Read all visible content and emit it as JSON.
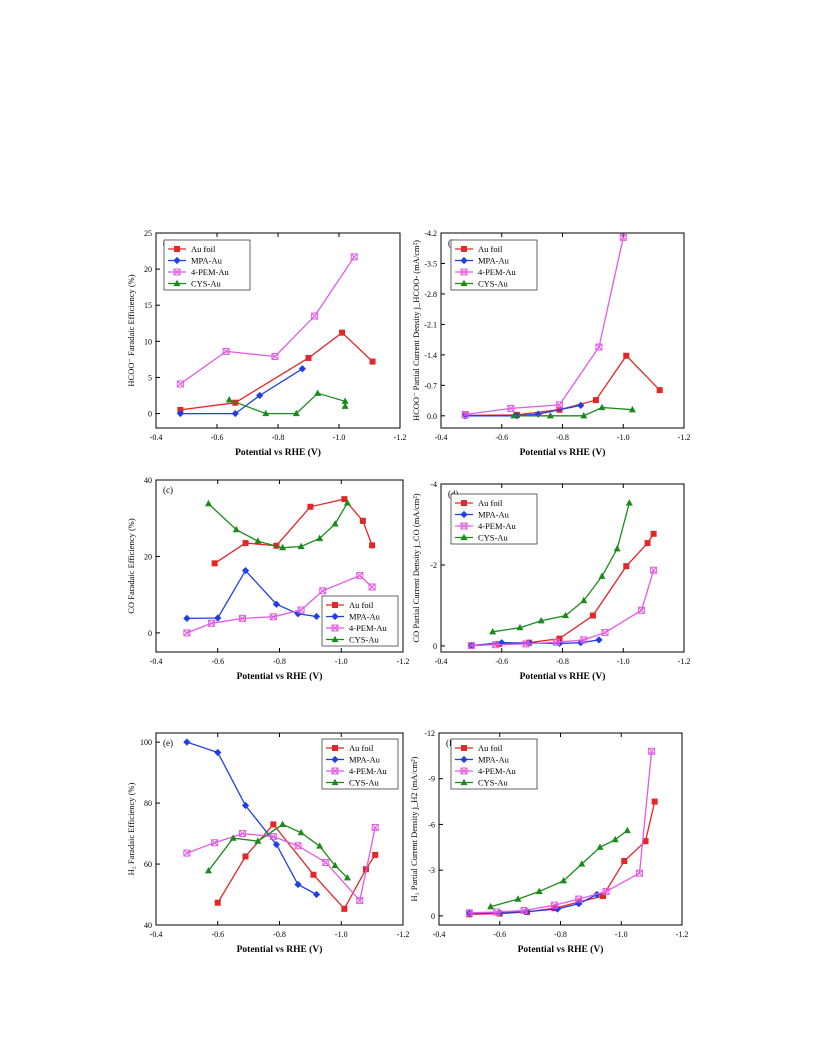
{
  "colors": {
    "Au foil": "#e32626",
    "MPA-Au": "#1f3ee8",
    "4-PEM-Au": "#e35ae3",
    "CYS-Au": "#1a8a1a"
  },
  "chart_data": [
    {
      "type": "line",
      "panel_label": "(a)",
      "xlabel": "Potential vs RHE (V)",
      "ylabel": "HCOO⁻ Faradaic Efficiency (%)",
      "xlim": [
        -0.4,
        -1.2
      ],
      "ylim": [
        -2,
        25
      ],
      "xticks": [
        -0.4,
        -0.6,
        -0.8,
        -1.0,
        -1.2
      ],
      "xtick_labels": [
        "-0.4",
        "-0.6",
        "-0.8",
        "-1.0",
        "-1.2"
      ],
      "yticks": [
        0,
        5,
        10,
        15,
        20,
        25
      ],
      "ytick_labels": [
        "0",
        "5",
        "10",
        "15",
        "20",
        "25"
      ],
      "legend": "top-left",
      "series": [
        {
          "name": "Au foil",
          "marker": "square",
          "points": [
            [
              -0.48,
              0.5
            ],
            [
              -0.66,
              1.5
            ],
            [
              -0.9,
              7.7
            ],
            [
              -1.01,
              11.2
            ],
            [
              -1.11,
              7.2
            ]
          ]
        },
        {
          "name": "MPA-Au",
          "marker": "diamond",
          "points": [
            [
              -0.48,
              0.0
            ],
            [
              -0.66,
              0.0
            ],
            [
              -0.74,
              2.5
            ],
            [
              -0.88,
              6.2
            ]
          ]
        },
        {
          "name": "4-PEM-Au",
          "marker": "xsquare",
          "points": [
            [
              -0.48,
              4.1
            ],
            [
              -0.63,
              8.6
            ],
            [
              -0.79,
              7.9
            ],
            [
              -0.92,
              13.5
            ],
            [
              -1.05,
              21.7
            ]
          ]
        },
        {
          "name": "CYS-Au",
          "marker": "triangle",
          "points": [
            [
              -0.64,
              1.9
            ],
            [
              -0.76,
              0.0
            ],
            [
              -0.86,
              0.0
            ],
            [
              -0.93,
              2.8
            ],
            [
              -1.02,
              1.7
            ],
            [
              -1.02,
              1.0
            ]
          ]
        }
      ]
    },
    {
      "type": "line",
      "panel_label": "(b)",
      "xlabel": "Potential vs RHE (V)",
      "ylabel": "HCOO⁻ Partial Current Density j_HCOO- (mA/cm²)",
      "xlim": [
        -0.4,
        -1.2
      ],
      "ylim": [
        0.28,
        -4.2
      ],
      "xticks": [
        -0.4,
        -0.6,
        -0.8,
        -1.0,
        -1.2
      ],
      "xtick_labels": [
        "-0.4",
        "-0.6",
        "-0.8",
        "-1.0",
        "-1.2"
      ],
      "yticks": [
        0.0,
        -0.7,
        -1.4,
        -2.1,
        -2.8,
        -3.5,
        -4.2
      ],
      "ytick_labels": [
        "0.0",
        "-0.7",
        "-1.4",
        "-2.1",
        "-2.8",
        "-3.5",
        "-4.2"
      ],
      "legend": "top-left",
      "series": [
        {
          "name": "Au foil",
          "marker": "square",
          "points": [
            [
              -0.48,
              -0.01
            ],
            [
              -0.65,
              -0.02
            ],
            [
              -0.79,
              -0.14
            ],
            [
              -0.91,
              -0.36
            ],
            [
              -1.01,
              -1.38
            ],
            [
              -1.12,
              -0.59
            ]
          ]
        },
        {
          "name": "MPA-Au",
          "marker": "diamond",
          "points": [
            [
              -0.48,
              0.0
            ],
            [
              -0.65,
              0.0
            ],
            [
              -0.72,
              -0.04
            ],
            [
              -0.86,
              -0.24
            ]
          ]
        },
        {
          "name": "4-PEM-Au",
          "marker": "xsquare",
          "points": [
            [
              -0.48,
              -0.03
            ],
            [
              -0.63,
              -0.17
            ],
            [
              -0.79,
              -0.25
            ],
            [
              -0.92,
              -1.58
            ],
            [
              -1.0,
              -4.1
            ]
          ]
        },
        {
          "name": "CYS-Au",
          "marker": "triangle",
          "points": [
            [
              -0.64,
              0.0
            ],
            [
              -0.76,
              0.0
            ],
            [
              -0.87,
              0.0
            ],
            [
              -0.93,
              -0.19
            ],
            [
              -1.03,
              -0.14
            ]
          ]
        }
      ]
    },
    {
      "type": "line",
      "panel_label": "(c)",
      "xlabel": "Potential vs RHE (V)",
      "ylabel": "CO Faradaic Efficiency (%)",
      "xlim": [
        -0.4,
        -1.2
      ],
      "ylim": [
        -5,
        40
      ],
      "xticks": [
        -0.4,
        -0.6,
        -0.8,
        -1.0,
        -1.2
      ],
      "xtick_labels": [
        "-0.4",
        "-0.6",
        "-0.8",
        "-1.0",
        "-1.2"
      ],
      "yticks": [
        0,
        20,
        40
      ],
      "ytick_labels": [
        "0",
        "20",
        "40"
      ],
      "legend": "bottom-right",
      "series": [
        {
          "name": "Au foil",
          "marker": "square",
          "points": [
            [
              -0.59,
              18.2
            ],
            [
              -0.69,
              23.5
            ],
            [
              -0.79,
              22.8
            ],
            [
              -0.9,
              33.0
            ],
            [
              -1.01,
              35.0
            ],
            [
              -1.07,
              29.3
            ],
            [
              -1.1,
              22.9
            ]
          ]
        },
        {
          "name": "MPA-Au",
          "marker": "diamond",
          "points": [
            [
              -0.5,
              3.8
            ],
            [
              -0.6,
              3.9
            ],
            [
              -0.69,
              16.3
            ],
            [
              -0.79,
              7.5
            ],
            [
              -0.86,
              5.0
            ],
            [
              -0.92,
              4.3
            ]
          ]
        },
        {
          "name": "4-PEM-Au",
          "marker": "xsquare",
          "points": [
            [
              -0.5,
              0.0
            ],
            [
              -0.58,
              2.5
            ],
            [
              -0.68,
              3.8
            ],
            [
              -0.78,
              4.2
            ],
            [
              -0.87,
              6.0
            ],
            [
              -0.94,
              11.0
            ],
            [
              -1.06,
              15.0
            ],
            [
              -1.1,
              12.0
            ]
          ]
        },
        {
          "name": "CYS-Au",
          "marker": "triangle",
          "points": [
            [
              -0.57,
              33.8
            ],
            [
              -0.66,
              27.0
            ],
            [
              -0.73,
              24.0
            ],
            [
              -0.81,
              22.3
            ],
            [
              -0.87,
              22.6
            ],
            [
              -0.93,
              24.7
            ],
            [
              -0.98,
              28.5
            ],
            [
              -1.02,
              34.0
            ]
          ]
        }
      ]
    },
    {
      "type": "line",
      "panel_label": "(d)",
      "xlabel": "Potential vs RHE (V)",
      "ylabel": "CO Partial Current Density j_CO (mA/cm²)",
      "xlim": [
        -0.4,
        -1.2
      ],
      "ylim": [
        0.15,
        -4
      ],
      "xticks": [
        -0.4,
        -0.6,
        -0.8,
        -1.0,
        -1.2
      ],
      "xtick_labels": [
        "-0.4",
        "-0.6",
        "-0.8",
        "-1.0",
        "-1.2"
      ],
      "yticks": [
        0,
        -2,
        -4
      ],
      "ytick_labels": [
        "0",
        "-2",
        "-4"
      ],
      "legend": "top-left",
      "series": [
        {
          "name": "Au foil",
          "marker": "square",
          "points": [
            [
              -0.5,
              0.0
            ],
            [
              -0.59,
              -0.05
            ],
            [
              -0.69,
              -0.08
            ],
            [
              -0.79,
              -0.18
            ],
            [
              -0.9,
              -0.75
            ],
            [
              -1.01,
              -1.97
            ],
            [
              -1.08,
              -2.54
            ],
            [
              -1.1,
              -2.77
            ]
          ]
        },
        {
          "name": "MPA-Au",
          "marker": "diamond",
          "points": [
            [
              -0.5,
              -0.01
            ],
            [
              -0.6,
              -0.08
            ],
            [
              -0.69,
              -0.07
            ],
            [
              -0.79,
              -0.06
            ],
            [
              -0.86,
              -0.08
            ],
            [
              -0.92,
              -0.15
            ]
          ]
        },
        {
          "name": "4-PEM-Au",
          "marker": "xsquare",
          "points": [
            [
              -0.5,
              -0.01
            ],
            [
              -0.58,
              -0.03
            ],
            [
              -0.68,
              -0.05
            ],
            [
              -0.78,
              -0.09
            ],
            [
              -0.87,
              -0.15
            ],
            [
              -0.94,
              -0.33
            ],
            [
              -1.06,
              -0.88
            ],
            [
              -1.1,
              -1.87
            ]
          ]
        },
        {
          "name": "CYS-Au",
          "marker": "triangle",
          "points": [
            [
              -0.57,
              -0.35
            ],
            [
              -0.66,
              -0.45
            ],
            [
              -0.73,
              -0.62
            ],
            [
              -0.81,
              -0.75
            ],
            [
              -0.87,
              -1.12
            ],
            [
              -0.93,
              -1.72
            ],
            [
              -0.98,
              -2.4
            ],
            [
              -1.02,
              -3.53
            ]
          ]
        }
      ]
    },
    {
      "type": "line",
      "panel_label": "(e)",
      "xlabel": "Potential vs RHE (V)",
      "ylabel": "H₂ Faradaic Efficiency (%)",
      "xlim": [
        -0.4,
        -1.2
      ],
      "ylim": [
        40,
        103
      ],
      "xticks": [
        -0.4,
        -0.6,
        -0.8,
        -1.0,
        -1.2
      ],
      "xtick_labels": [
        "-0.4",
        "-0.6",
        "-0.8",
        "-1.0",
        "-1.2"
      ],
      "yticks": [
        40,
        60,
        80,
        100
      ],
      "ytick_labels": [
        "40",
        "60",
        "80",
        "100"
      ],
      "legend": "top-right",
      "series": [
        {
          "name": "Au foil",
          "marker": "square",
          "points": [
            [
              -0.6,
              47.3
            ],
            [
              -0.69,
              62.5
            ],
            [
              -0.78,
              73.0
            ],
            [
              -0.91,
              56.5
            ],
            [
              -1.01,
              45.3
            ],
            [
              -1.08,
              58.3
            ],
            [
              -1.11,
              63.0
            ]
          ]
        },
        {
          "name": "MPA-Au",
          "marker": "diamond",
          "points": [
            [
              -0.5,
              100.0
            ],
            [
              -0.6,
              96.6
            ],
            [
              -0.69,
              79.2
            ],
            [
              -0.79,
              66.4
            ],
            [
              -0.86,
              53.3
            ],
            [
              -0.92,
              50.0
            ]
          ]
        },
        {
          "name": "4-PEM-Au",
          "marker": "xsquare",
          "points": [
            [
              -0.5,
              63.6
            ],
            [
              -0.59,
              67.0
            ],
            [
              -0.68,
              70.0
            ],
            [
              -0.78,
              69.0
            ],
            [
              -0.86,
              66.0
            ],
            [
              -0.95,
              60.5
            ],
            [
              -1.06,
              48.0
            ],
            [
              -1.11,
              72.0
            ]
          ]
        },
        {
          "name": "CYS-Au",
          "marker": "triangle",
          "points": [
            [
              -0.57,
              57.8
            ],
            [
              -0.65,
              68.5
            ],
            [
              -0.73,
              67.5
            ],
            [
              -0.81,
              73.0
            ],
            [
              -0.87,
              70.3
            ],
            [
              -0.93,
              65.9
            ],
            [
              -0.98,
              59.5
            ],
            [
              -1.02,
              55.5
            ]
          ]
        }
      ]
    },
    {
      "type": "line",
      "panel_label": "(f)",
      "xlabel": "Potential vs RHE (V)",
      "ylabel": "H₂ Partial Current Density j_H2 (mA/cm²)",
      "xlim": [
        -0.4,
        -1.2
      ],
      "ylim": [
        0.6,
        -12
      ],
      "xticks": [
        -0.4,
        -0.6,
        -0.8,
        -1.0,
        -1.2
      ],
      "xtick_labels": [
        "-0.4",
        "-0.6",
        "-0.8",
        "-1.0",
        "-1.2"
      ],
      "yticks": [
        0,
        -3,
        -6,
        -9,
        -12
      ],
      "ytick_labels": [
        "0",
        "-3",
        "-6",
        "-9",
        "-12"
      ],
      "legend": "top-left",
      "series": [
        {
          "name": "Au foil",
          "marker": "square",
          "points": [
            [
              -0.5,
              -0.1
            ],
            [
              -0.6,
              -0.15
            ],
            [
              -0.69,
              -0.25
            ],
            [
              -0.78,
              -0.5
            ],
            [
              -0.86,
              -0.9
            ],
            [
              -0.94,
              -1.3
            ],
            [
              -1.01,
              -3.6
            ],
            [
              -1.08,
              -4.9
            ],
            [
              -1.11,
              -7.5
            ]
          ]
        },
        {
          "name": "MPA-Au",
          "marker": "diamond",
          "points": [
            [
              -0.5,
              -0.18
            ],
            [
              -0.6,
              -0.2
            ],
            [
              -0.69,
              -0.28
            ],
            [
              -0.79,
              -0.45
            ],
            [
              -0.86,
              -0.8
            ],
            [
              -0.92,
              -1.4
            ]
          ]
        },
        {
          "name": "4-PEM-Au",
          "marker": "xsquare",
          "points": [
            [
              -0.5,
              -0.2
            ],
            [
              -0.59,
              -0.25
            ],
            [
              -0.68,
              -0.35
            ],
            [
              -0.78,
              -0.7
            ],
            [
              -0.86,
              -1.1
            ],
            [
              -0.95,
              -1.6
            ],
            [
              -1.06,
              -2.8
            ],
            [
              -1.1,
              -10.8
            ]
          ]
        },
        {
          "name": "CYS-Au",
          "marker": "triangle",
          "points": [
            [
              -0.57,
              -0.6
            ],
            [
              -0.66,
              -1.1
            ],
            [
              -0.73,
              -1.6
            ],
            [
              -0.81,
              -2.3
            ],
            [
              -0.87,
              -3.4
            ],
            [
              -0.93,
              -4.5
            ],
            [
              -0.98,
              -5.0
            ],
            [
              -1.02,
              -5.6
            ]
          ]
        }
      ]
    }
  ]
}
